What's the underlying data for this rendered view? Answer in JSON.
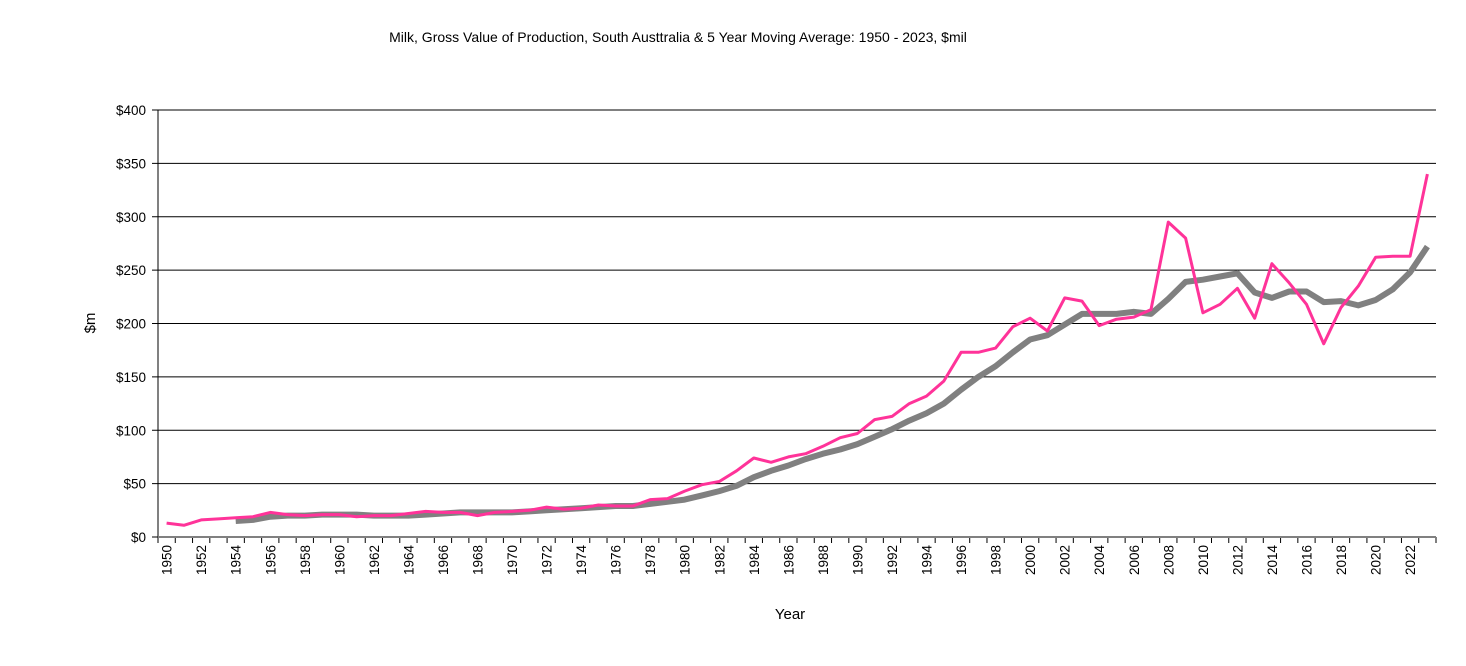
{
  "chart_data": {
    "type": "line",
    "title": "Milk, Gross Value of Production,  South Austtralia & 5 Year Moving Average: 1950 - 2023, $mil",
    "xlabel": "Year",
    "ylabel": "$m",
    "ylim": [
      0,
      400
    ],
    "y_ticks": [
      0,
      50,
      100,
      150,
      200,
      250,
      300,
      350,
      400
    ],
    "y_tick_labels": [
      "$0",
      "$50",
      "$100",
      "$150",
      "$200",
      "$250",
      "$300",
      "$350",
      "$400"
    ],
    "grid": true,
    "legend": "none",
    "x": [
      1950,
      1951,
      1952,
      1953,
      1954,
      1955,
      1956,
      1957,
      1958,
      1959,
      1960,
      1961,
      1962,
      1963,
      1964,
      1965,
      1966,
      1967,
      1968,
      1969,
      1970,
      1971,
      1972,
      1973,
      1974,
      1975,
      1976,
      1977,
      1978,
      1979,
      1980,
      1981,
      1982,
      1983,
      1984,
      1985,
      1986,
      1987,
      1988,
      1989,
      1990,
      1991,
      1992,
      1993,
      1994,
      1995,
      1996,
      1997,
      1998,
      1999,
      2000,
      2001,
      2002,
      2003,
      2004,
      2005,
      2006,
      2007,
      2008,
      2009,
      2010,
      2011,
      2012,
      2013,
      2014,
      2015,
      2016,
      2017,
      2018,
      2019,
      2020,
      2021,
      2022,
      2023
    ],
    "x_tick_labels": [
      "1950",
      "1952",
      "1954",
      "1956",
      "1958",
      "1960",
      "1962",
      "1964",
      "1966",
      "1968",
      "1970",
      "1972",
      "1974",
      "1976",
      "1978",
      "1980",
      "1982",
      "1984",
      "1986",
      "1988",
      "1990",
      "1992",
      "1994",
      "1996",
      "1998",
      "2000",
      "2002",
      "2004",
      "2006",
      "2008",
      "2010",
      "2012",
      "2014",
      "2016",
      "2018",
      "2020",
      "2022"
    ],
    "series": [
      {
        "name": "Gross Value of Production",
        "color": "#ff3399",
        "values": [
          13,
          11,
          16,
          17,
          18,
          19,
          23,
          21,
          20,
          21,
          21,
          19,
          20,
          20,
          22,
          24,
          23,
          23,
          20,
          23,
          24,
          25,
          28,
          26,
          27,
          30,
          29,
          29,
          35,
          36,
          43,
          49,
          52,
          62,
          74,
          70,
          75,
          78,
          85,
          93,
          97,
          110,
          113,
          125,
          132,
          146,
          173,
          173,
          177,
          197,
          205,
          193,
          224,
          221,
          198,
          204,
          206,
          213,
          295,
          280,
          210,
          218,
          233,
          205,
          256,
          238,
          218,
          181,
          215,
          235,
          262,
          263,
          263,
          340
        ]
      },
      {
        "name": "5 Year Moving Average",
        "color": "#808080",
        "values": [
          null,
          null,
          null,
          null,
          15,
          16,
          19,
          20,
          20,
          21,
          21,
          21,
          20,
          20,
          20,
          21,
          22,
          23,
          23,
          23,
          23,
          24,
          25,
          26,
          27,
          28,
          29,
          29,
          31,
          33,
          35,
          39,
          43,
          48,
          56,
          62,
          67,
          73,
          78,
          82,
          87,
          94,
          101,
          109,
          116,
          125,
          138,
          150,
          160,
          173,
          185,
          189,
          199,
          209,
          209,
          209,
          211,
          209,
          223,
          239,
          241,
          244,
          247,
          229,
          224,
          230,
          230,
          220,
          221,
          217,
          222,
          232,
          248,
          272
        ]
      }
    ]
  }
}
